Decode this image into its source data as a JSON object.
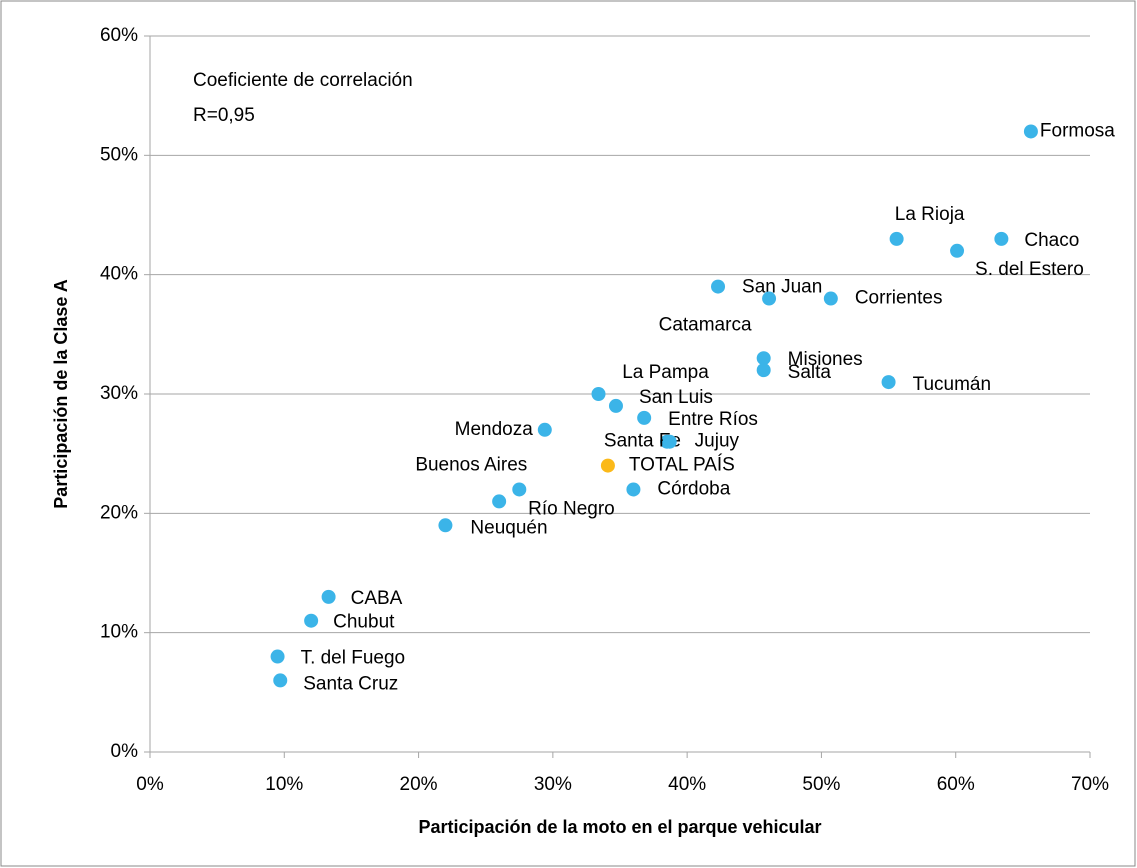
{
  "chart_data": {
    "type": "scatter",
    "annotations": [
      "Coeficiente de correlación",
      "R=0,95"
    ],
    "x_label": "Participación de la moto en el parque vehicular",
    "y_label": "Participación de la Clase A",
    "labels": [
      "Formosa",
      "La Rioja",
      "Chaco",
      "S. del Estero",
      "San Juan",
      "Catamarca",
      "Corrientes",
      "Misiones",
      "Salta",
      "Tucumán",
      "La Pampa",
      "San Luis",
      "Entre Ríos",
      "Mendoza",
      "Santa Fe",
      "Jujuy",
      "TOTAL PAÍS",
      "Córdoba",
      "Buenos Aires",
      "Río Negro",
      "Neuquén",
      "CABA",
      "Chubut",
      "T. del Fuego",
      "Santa Cruz"
    ],
    "x": [
      65.6,
      55.6,
      63.4,
      60.1,
      42.3,
      46.1,
      50.7,
      45.7,
      45.7,
      55.0,
      33.4,
      34.7,
      36.8,
      29.4,
      38.5,
      38.7,
      34.1,
      36.0,
      27.5,
      26.0,
      22.0,
      13.3,
      12.0,
      9.5,
      9.7
    ],
    "values": [
      52,
      43,
      43,
      42,
      39,
      38,
      38,
      33,
      32,
      31,
      30,
      29,
      28,
      27,
      26,
      26,
      24,
      22,
      22,
      21,
      19,
      13,
      11,
      8,
      6
    ],
    "colors": [
      "#3bb4e8",
      "#3bb4e8",
      "#3bb4e8",
      "#3bb4e8",
      "#3bb4e8",
      "#3bb4e8",
      "#3bb4e8",
      "#3bb4e8",
      "#3bb4e8",
      "#3bb4e8",
      "#3bb4e8",
      "#3bb4e8",
      "#3bb4e8",
      "#3bb4e8",
      "#3bb4e8",
      "#3bb4e8",
      "#fbb919",
      "#3bb4e8",
      "#3bb4e8",
      "#3bb4e8",
      "#3bb4e8",
      "#3bb4e8",
      "#3bb4e8",
      "#3bb4e8",
      "#3bb4e8"
    ],
    "xlim": [
      0,
      70
    ],
    "ylim": [
      0,
      60
    ],
    "xticks": [
      {
        "value": 0,
        "label": "0%"
      },
      {
        "value": 10,
        "label": "10%"
      },
      {
        "value": 20,
        "label": "20%"
      },
      {
        "value": 30,
        "label": "30%"
      },
      {
        "value": 40,
        "label": "40%"
      },
      {
        "value": 50,
        "label": "50%"
      },
      {
        "value": 60,
        "label": "60%"
      },
      {
        "value": 70,
        "label": "70%"
      }
    ],
    "yticks": [
      {
        "value": 0,
        "label": "0%"
      },
      {
        "value": 10,
        "label": "10%"
      },
      {
        "value": 20,
        "label": "20%"
      },
      {
        "value": 30,
        "label": "30%"
      },
      {
        "value": 40,
        "label": "40%"
      },
      {
        "value": 50,
        "label": "50%"
      },
      {
        "value": 60,
        "label": "60%"
      }
    ],
    "grid": true
  }
}
